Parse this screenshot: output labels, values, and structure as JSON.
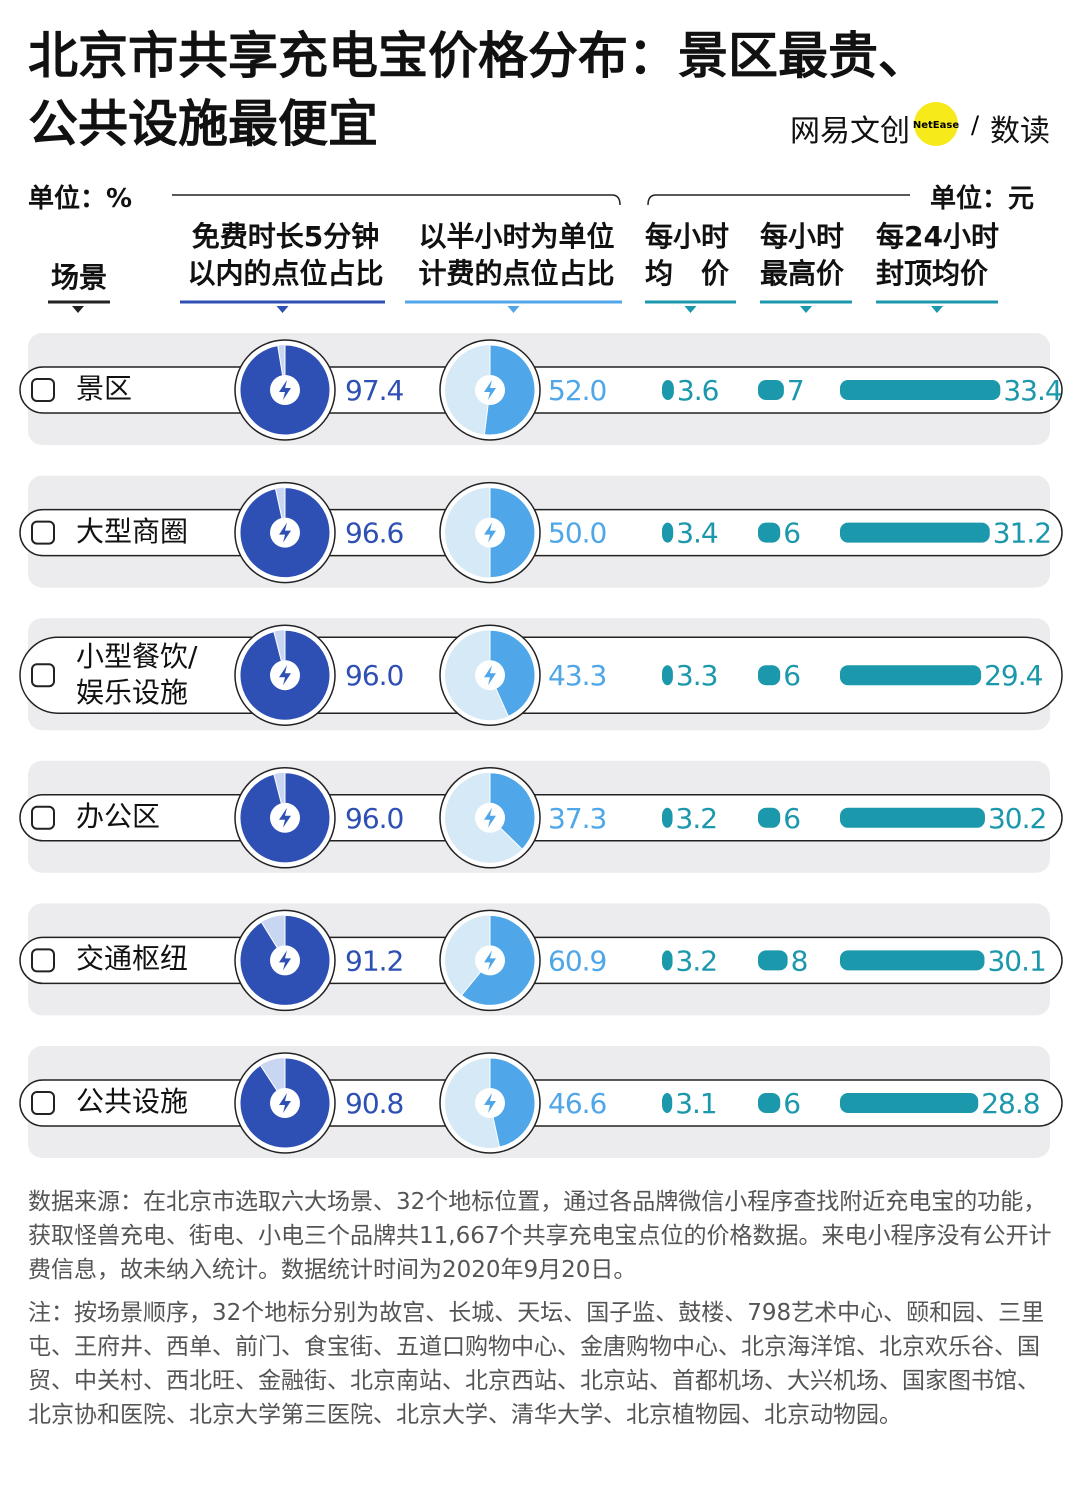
{
  "chart_data": {
    "type": "pie-bar-table",
    "title": "北京市共享充电宝价格分布：景区最贵、\n公共设施最便宜",
    "brand": {
      "left": "网易文创",
      "badge": "NetEase",
      "slash": "/",
      "right": "数读"
    },
    "unit_left": "单位：%",
    "unit_right": "单位：元",
    "category_header": "场景",
    "categories": [
      "景区",
      "大型商圈",
      "小型餐饮/\n娱乐设施",
      "办公区",
      "交通枢纽",
      "公共设施"
    ],
    "series": [
      {
        "name": "免费时长5分钟\n以内的点位占比",
        "kind": "pie",
        "color": "#2e4fb3",
        "values": [
          97.4,
          96.6,
          96.0,
          96.0,
          91.2,
          90.8
        ],
        "value_labels": [
          "97.4",
          "96.6",
          "96.0",
          "96.0",
          "91.2",
          "90.8"
        ]
      },
      {
        "name": "以半小时为单位\n计费的点位占比",
        "kind": "pie",
        "color": "#4fa6e8",
        "values": [
          52.0,
          50.0,
          43.3,
          37.3,
          60.9,
          46.6
        ],
        "value_labels": [
          "52.0",
          "50.0",
          "43.3",
          "37.3",
          "60.9",
          "46.6"
        ]
      },
      {
        "name": "每小时\n均　价",
        "kind": "bar",
        "color": "#1b98ab",
        "values": [
          3.6,
          3.4,
          3.3,
          3.2,
          3.2,
          3.1
        ]
      },
      {
        "name": "每小时\n最高价",
        "kind": "bar",
        "color": "#1b98ab",
        "values": [
          7,
          6,
          6,
          6,
          8,
          6
        ]
      },
      {
        "name": "每24小时\n封顶均价",
        "kind": "bar",
        "color": "#1b98ab",
        "values": [
          33.4,
          31.2,
          29.4,
          30.2,
          30.1,
          28.8
        ]
      }
    ],
    "notes": [
      "数据来源：在北京市选取六大场景、32个地标位置，通过各品牌微信小程序查找附近充电宝的功能，获取怪兽充电、街电、小电三个品牌共11,667个共享充电宝点位的价格数据。来电小程序没有公开计费信息，故未纳入统计。数据统计时间为2020年9月20日。",
      "注：按场景顺序，32个地标分别为故宫、长城、天坛、国子监、鼓楼、798艺术中心、颐和园、三里屯、王府井、西单、前门、食宝街、五道口购物中心、金唐购物中心、北京海洋馆、北京欢乐谷、国贸、中关村、西北旺、金融街、北京南站、北京西站、北京站、首都机场、大兴机场、国家图书馆、北京协和医院、北京大学第三医院、北京大学、清华大学、北京植物园、北京动物园。"
    ]
  }
}
